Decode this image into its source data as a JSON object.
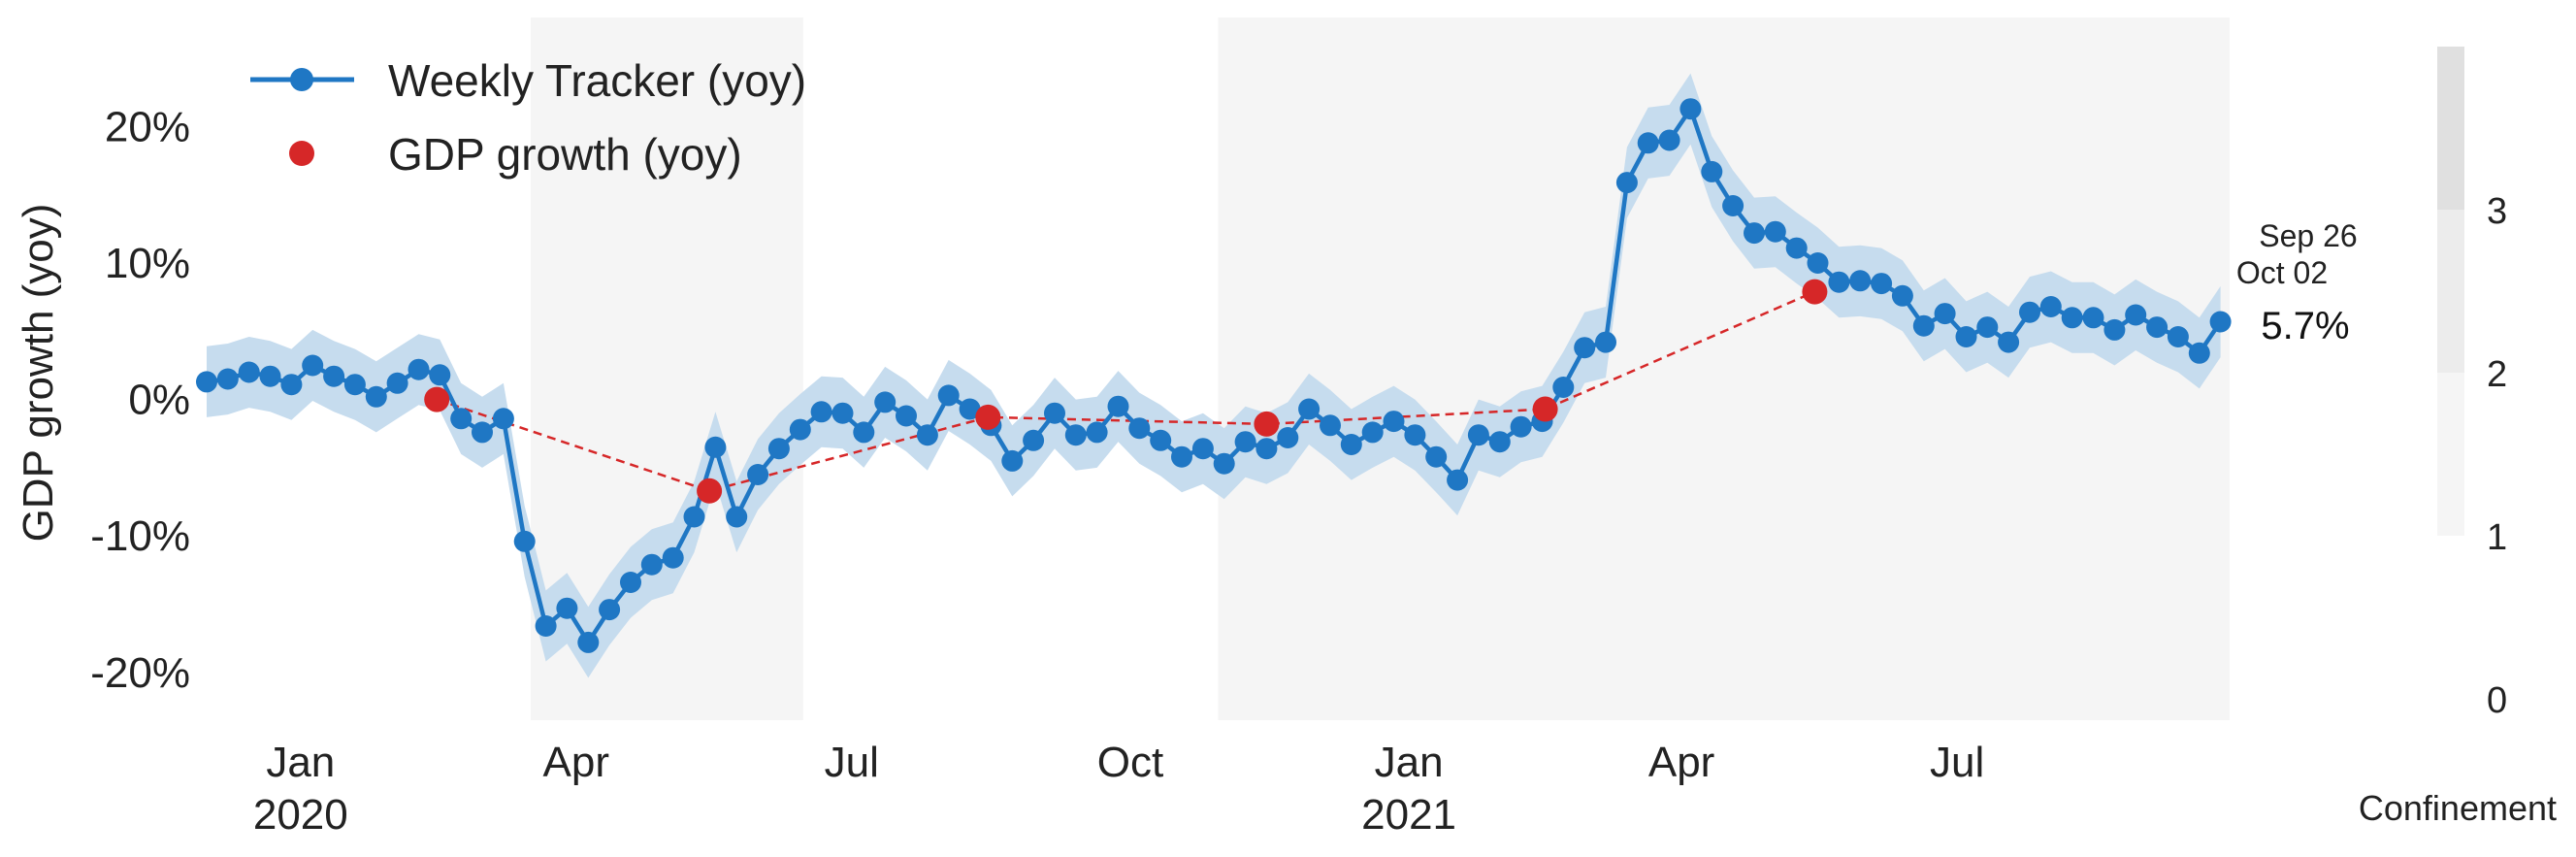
{
  "chart_data": {
    "type": "line",
    "ylabel": "GDP growth (yoy)",
    "ylim": [
      -23.5,
      28
    ],
    "xlim": [
      "2019-12-01",
      "2021-09-29"
    ],
    "grid": false,
    "legend_position": "top-left",
    "colors": {
      "tracker": "#1f77c4",
      "band": "#c6dcee",
      "gdp": "#d62728",
      "confinement_shade": "#f5f5f5"
    },
    "y_ticks": [
      {
        "value": 20,
        "label": "20%"
      },
      {
        "value": 10,
        "label": "10%"
      },
      {
        "value": 0,
        "label": "0%"
      },
      {
        "value": -10,
        "label": "-10%"
      },
      {
        "value": -20,
        "label": "-20%"
      }
    ],
    "x_ticks": [
      {
        "date": "2020-01-01",
        "label": "Jan",
        "year": "2020"
      },
      {
        "date": "2020-04-01",
        "label": "Apr",
        "year": ""
      },
      {
        "date": "2020-07-01",
        "label": "Jul",
        "year": ""
      },
      {
        "date": "2020-10-01",
        "label": "Oct",
        "year": ""
      },
      {
        "date": "2021-01-01",
        "label": "Jan",
        "year": "2021"
      },
      {
        "date": "2021-04-01",
        "label": "Apr",
        "year": ""
      },
      {
        "date": "2021-07-01",
        "label": "Jul",
        "year": ""
      }
    ],
    "series": [
      {
        "name": "Weekly Tracker (yoy)",
        "kind": "line-markers",
        "start_date": "2019-12-01",
        "step_days": 7,
        "values": [
          1.3,
          1.5,
          2.0,
          1.7,
          1.1,
          2.5,
          1.7,
          1.1,
          0.2,
          1.2,
          2.2,
          1.8,
          -1.4,
          -2.4,
          -1.4,
          -10.4,
          -16.6,
          -15.3,
          -17.8,
          -15.4,
          -13.4,
          -12.1,
          -11.6,
          -8.6,
          -3.5,
          -8.6,
          -5.5,
          -3.6,
          -2.2,
          -0.9,
          -1.0,
          -2.4,
          -0.2,
          -1.2,
          -2.6,
          0.3,
          -0.7,
          -1.9,
          -4.5,
          -3.0,
          -1.0,
          -2.6,
          -2.4,
          -0.5,
          -2.1,
          -3.0,
          -4.2,
          -3.6,
          -4.7,
          -3.1,
          -3.6,
          -2.8,
          -0.7,
          -1.9,
          -3.3,
          -2.4,
          -1.6,
          -2.6,
          -4.2,
          -5.9,
          -2.6,
          -3.1,
          -2.0,
          -1.6,
          0.9,
          3.8,
          4.2,
          15.9,
          18.8,
          19.0,
          21.3,
          16.7,
          14.2,
          12.2,
          12.3,
          11.1,
          10.0,
          8.6,
          8.7,
          8.5,
          7.6,
          5.4,
          6.3,
          4.6,
          5.3,
          4.2,
          6.4,
          6.8,
          6.0,
          6.0,
          5.1,
          6.2,
          5.3,
          4.6,
          3.4,
          5.7
        ]
      },
      {
        "name": "GDP growth (yoy)",
        "kind": "points-dashed",
        "points": [
          {
            "date": "2020-02-15",
            "value": 0.0
          },
          {
            "date": "2020-05-15",
            "value": -6.7
          },
          {
            "date": "2020-08-15",
            "value": -1.3
          },
          {
            "date": "2020-11-15",
            "value": -1.8
          },
          {
            "date": "2021-02-15",
            "value": -0.7
          },
          {
            "date": "2021-05-15",
            "value": 7.9
          }
        ]
      }
    ],
    "band_halfwidth": 2.6,
    "confinement_periods": [
      {
        "start": "2020-03-17",
        "end": "2020-06-15",
        "level": 1
      },
      {
        "start": "2020-10-30",
        "end": "2021-09-29",
        "level": 1
      }
    ],
    "annotation": {
      "date_top": "Sep 26",
      "date_bottom": "Oct 02",
      "value_label": "5.7%"
    },
    "colorbar": {
      "label": "Confinement",
      "ticks": [
        "0",
        "1",
        "2",
        "3"
      ],
      "levels": [
        {
          "from": 1,
          "to": 2,
          "color": "#f5f5f5"
        },
        {
          "from": 2,
          "to": 3,
          "color": "#ececec"
        },
        {
          "from": 3,
          "to": 4,
          "color": "#e0e0e0"
        }
      ]
    }
  }
}
